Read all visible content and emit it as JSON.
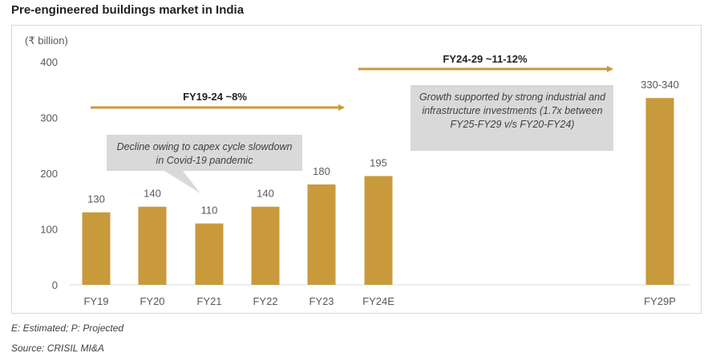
{
  "title": "Pre-engineered buildings market in India",
  "unit_label": "(₹ billion)",
  "footnotes": {
    "estimated": "E: Estimated; P: Projected",
    "source": "Source: CRISIL MI&A"
  },
  "colors": {
    "bar": "#c89a3c",
    "arrow": "#c89a3c",
    "callout": "#d9d9d9",
    "axis": "#d9d9d9",
    "text": "#595959"
  },
  "annotations": {
    "cagr_19_24": "FY19-24 ~8%",
    "cagr_24_29": "FY24-29 ~11-12%",
    "callout_decline": "Decline owing to capex cycle slowdown in Covid-19 pandemic",
    "callout_growth": "Growth supported by strong industrial and infrastructure investments (1.7x between FY25-FY29 v/s FY20-FY24)"
  },
  "chart_data": {
    "type": "bar",
    "title": "Pre-engineered buildings market in India",
    "ylabel": "(₹ billion)",
    "ylim": [
      0,
      400
    ],
    "yticks": [
      0,
      100,
      200,
      300,
      400
    ],
    "grid": false,
    "categories": [
      "FY19",
      "FY20",
      "FY21",
      "FY22",
      "FY23",
      "FY24E",
      "FY29P"
    ],
    "values": [
      130,
      140,
      110,
      140,
      180,
      195,
      335
    ],
    "data_labels": [
      "130",
      "140",
      "110",
      "140",
      "180",
      "195",
      "330-340"
    ]
  }
}
